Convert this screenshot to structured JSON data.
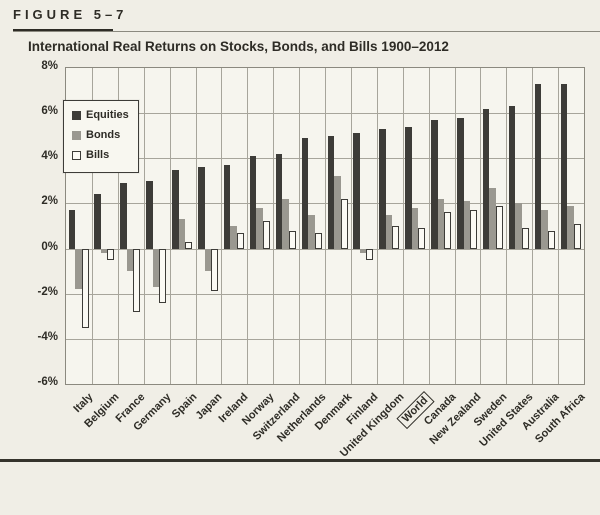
{
  "figure": {
    "label": "FIGURE 5–7",
    "title": "International Real Returns on Stocks, Bonds, and Bills 1900–2012"
  },
  "legend": {
    "items": [
      {
        "label": "Equities",
        "swatch": "equities"
      },
      {
        "label": "Bonds",
        "swatch": "bonds"
      },
      {
        "label": "Bills",
        "swatch": "bills"
      }
    ]
  },
  "colors": {
    "equities": "#3d3c38",
    "bonds": "#9a9890",
    "bills_fill": "#fbfaf4",
    "bills_border": "#3d3c38",
    "page_bg": "#f0eee6",
    "plot_bg": "#f6f5ee",
    "grid": "#a7a59b",
    "frame": "#8b897f",
    "text": "#2e2c26"
  },
  "chart_data": {
    "type": "bar",
    "title": "International Real Returns on Stocks, Bonds, and Bills 1900–2012",
    "categories": [
      "Italy",
      "Belgium",
      "France",
      "Germany",
      "Spain",
      "Japan",
      "Ireland",
      "Norway",
      "Switzerland",
      "Netherlands",
      "Denmark",
      "Finland",
      "United Kingdom",
      "World",
      "Canada",
      "New Zealand",
      "Sweden",
      "United States",
      "Australia",
      "South Africa"
    ],
    "series": [
      {
        "name": "Equities",
        "values": [
          1.7,
          2.4,
          2.9,
          3.0,
          3.5,
          3.6,
          3.7,
          4.1,
          4.2,
          4.9,
          5.0,
          5.1,
          5.3,
          5.4,
          5.7,
          5.8,
          6.2,
          6.3,
          7.3,
          7.3
        ]
      },
      {
        "name": "Bonds",
        "values": [
          -1.8,
          -0.2,
          -1.0,
          -1.7,
          1.3,
          -1.0,
          1.0,
          1.8,
          2.2,
          1.5,
          3.2,
          -0.2,
          1.5,
          1.8,
          2.2,
          2.1,
          2.7,
          2.0,
          1.7,
          1.9
        ]
      },
      {
        "name": "Bills",
        "values": [
          -3.5,
          -0.5,
          -2.8,
          -2.4,
          0.3,
          -1.9,
          0.7,
          1.2,
          0.8,
          0.7,
          2.2,
          -0.5,
          1.0,
          0.9,
          1.6,
          1.7,
          1.9,
          0.9,
          0.8,
          1.1
        ]
      }
    ],
    "xlabel": "",
    "ylabel": "",
    "ylim": [
      -6,
      8
    ],
    "y_tick_step": 2,
    "y_tick_labels": [
      "8%",
      "6%",
      "4%",
      "2%",
      "0%",
      "-2%",
      "-4%",
      "-6%"
    ],
    "grid": true,
    "legend_position": "upper-left-inside",
    "highlighted_category": "World"
  }
}
